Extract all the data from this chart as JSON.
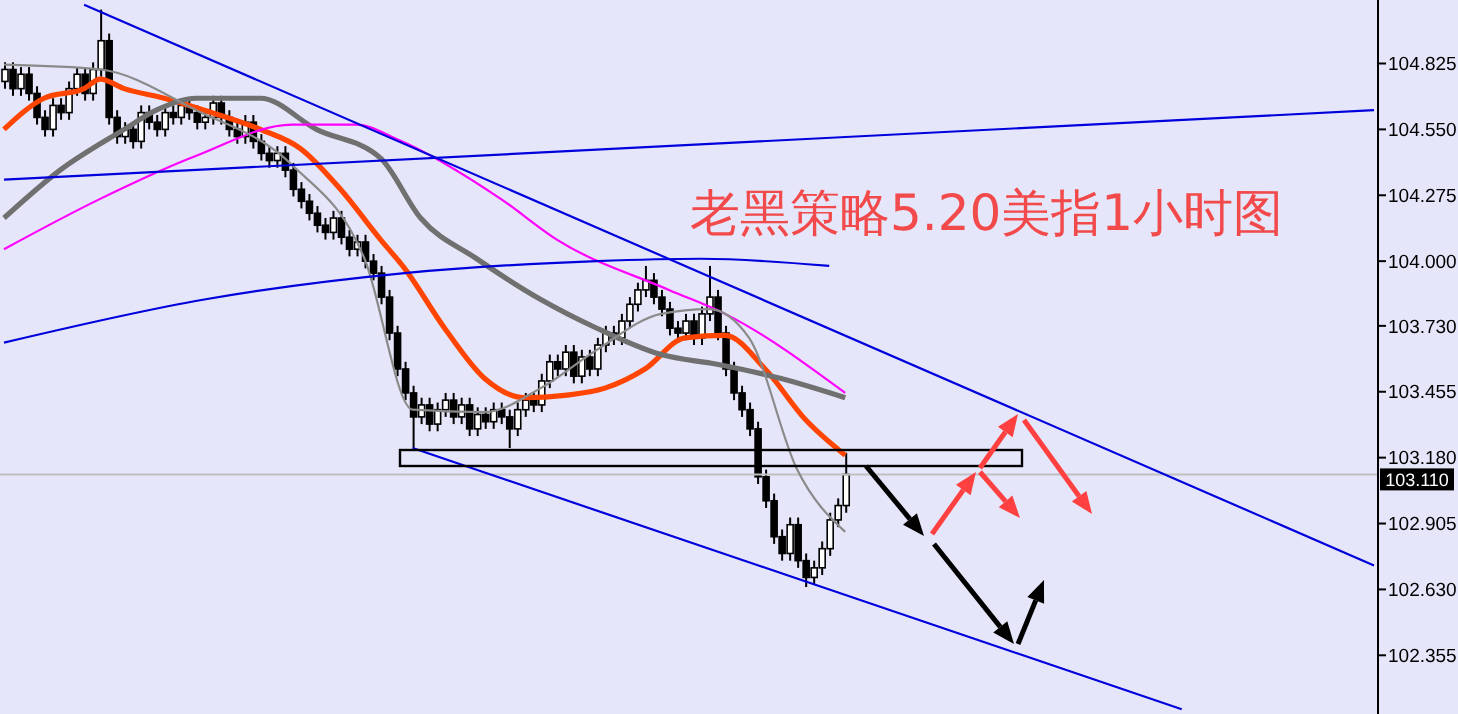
{
  "chart_data": {
    "type": "candlestick",
    "title": "老黑策略5.20美指1小时图",
    "categories": [
      null,
      null,
      null,
      null,
      null,
      null,
      null,
      null,
      null,
      null,
      null,
      null,
      null,
      null,
      null,
      null,
      null,
      null,
      null,
      null,
      null,
      null,
      null,
      null,
      null,
      null,
      null,
      null,
      null,
      null,
      null,
      null,
      null,
      null,
      null,
      null,
      null,
      null,
      null,
      null,
      null,
      null,
      null,
      null,
      null,
      null,
      null,
      null,
      null,
      null,
      null,
      null,
      null,
      null,
      null,
      null,
      null,
      null,
      null,
      null,
      null,
      null,
      null,
      null,
      null,
      null,
      null,
      null,
      null,
      null,
      null,
      null,
      null,
      null,
      null,
      null,
      null,
      null,
      null,
      null,
      null,
      null,
      null,
      null,
      null,
      null,
      null,
      null,
      null,
      null,
      null,
      null,
      null,
      null,
      null,
      null,
      null,
      null,
      null,
      null,
      null,
      null,
      null,
      null,
      null,
      null,
      null,
      null,
      null,
      null,
      null,
      null,
      null,
      null,
      null,
      null,
      null,
      null,
      null,
      null,
      null,
      null,
      null,
      null,
      null,
      null,
      null,
      null,
      null,
      null,
      null,
      null,
      null,
      null,
      null,
      null,
      null,
      null,
      null,
      null,
      null,
      null,
      null,
      null,
      null,
      null,
      null,
      null,
      null,
      null,
      null,
      null,
      null,
      null,
      null,
      null,
      null,
      null,
      null,
      null,
      null,
      null,
      null,
      null,
      null,
      null,
      null,
      null,
      null,
      null,
      null,
      null
    ],
    "ohlc": [
      [
        104.75,
        104.83,
        104.72,
        104.8
      ],
      [
        104.8,
        104.83,
        104.69,
        104.72
      ],
      [
        104.72,
        104.81,
        104.69,
        104.78
      ],
      [
        104.78,
        104.81,
        104.67,
        104.7
      ],
      [
        104.7,
        104.73,
        104.57,
        104.6
      ],
      [
        104.6,
        104.63,
        104.52,
        104.55
      ],
      [
        104.55,
        104.68,
        104.52,
        104.65
      ],
      [
        104.65,
        104.68,
        104.59,
        104.62
      ],
      [
        104.62,
        104.75,
        104.59,
        104.72
      ],
      [
        104.72,
        104.81,
        104.69,
        104.78
      ],
      [
        104.78,
        104.81,
        104.67,
        104.7
      ],
      [
        104.7,
        104.83,
        104.67,
        104.8
      ],
      [
        104.8,
        105.05,
        104.77,
        104.92
      ],
      [
        104.92,
        104.95,
        104.57,
        104.6
      ],
      [
        104.6,
        104.63,
        104.49,
        104.52
      ],
      [
        104.52,
        104.58,
        104.49,
        104.55
      ],
      [
        104.55,
        104.58,
        104.47,
        104.5
      ],
      [
        104.5,
        104.65,
        104.47,
        104.62
      ],
      [
        104.62,
        104.65,
        104.55,
        104.58
      ],
      [
        104.58,
        104.61,
        104.52,
        104.55
      ],
      [
        104.55,
        104.65,
        104.52,
        104.62
      ],
      [
        104.62,
        104.65,
        104.57,
        104.6
      ],
      [
        104.6,
        104.68,
        104.57,
        104.65
      ],
      [
        104.65,
        104.68,
        104.59,
        104.62
      ],
      [
        104.62,
        104.65,
        104.55,
        104.58
      ],
      [
        104.58,
        104.63,
        104.55,
        104.6
      ],
      [
        104.6,
        104.69,
        104.57,
        104.66
      ],
      [
        104.66,
        104.69,
        104.57,
        104.6
      ],
      [
        104.6,
        104.63,
        104.52,
        104.55
      ],
      [
        104.55,
        104.58,
        104.49,
        104.52
      ],
      [
        104.52,
        104.61,
        104.49,
        104.58
      ],
      [
        104.58,
        104.61,
        104.47,
        104.5
      ],
      [
        104.5,
        104.53,
        104.42,
        104.45
      ],
      [
        104.45,
        104.48,
        104.39,
        104.42
      ],
      [
        104.42,
        104.48,
        104.39,
        104.45
      ],
      [
        104.45,
        104.48,
        104.35,
        104.38
      ],
      [
        104.38,
        104.41,
        104.27,
        104.3
      ],
      [
        104.3,
        104.33,
        104.22,
        104.25
      ],
      [
        104.25,
        104.28,
        104.17,
        104.2
      ],
      [
        104.2,
        104.23,
        104.12,
        104.15
      ],
      [
        104.15,
        104.18,
        104.09,
        104.12
      ],
      [
        104.12,
        104.21,
        104.09,
        104.18
      ],
      [
        104.18,
        104.21,
        104.07,
        104.1
      ],
      [
        104.1,
        104.13,
        104.02,
        104.05
      ],
      [
        104.05,
        104.11,
        104.02,
        104.08
      ],
      [
        104.08,
        104.11,
        103.97,
        104.0
      ],
      [
        104.0,
        104.03,
        103.92,
        103.95
      ],
      [
        103.95,
        103.98,
        103.82,
        103.85
      ],
      [
        103.85,
        103.88,
        103.67,
        103.7
      ],
      [
        103.7,
        103.73,
        103.52,
        103.55
      ],
      [
        103.55,
        103.58,
        103.42,
        103.45
      ],
      [
        103.45,
        103.48,
        103.22,
        103.35
      ],
      [
        103.35,
        103.43,
        103.32,
        103.4
      ],
      [
        103.4,
        103.43,
        103.29,
        103.32
      ],
      [
        103.32,
        103.41,
        103.29,
        103.38
      ],
      [
        103.38,
        103.45,
        103.35,
        103.42
      ],
      [
        103.42,
        103.45,
        103.32,
        103.35
      ],
      [
        103.35,
        103.43,
        103.32,
        103.4
      ],
      [
        103.4,
        103.43,
        103.27,
        103.3
      ],
      [
        103.3,
        103.39,
        103.27,
        103.36
      ],
      [
        103.36,
        103.39,
        103.3,
        103.33
      ],
      [
        103.33,
        103.41,
        103.3,
        103.38
      ],
      [
        103.38,
        103.41,
        103.32,
        103.35
      ],
      [
        103.35,
        103.38,
        103.22,
        103.3
      ],
      [
        103.3,
        103.41,
        103.27,
        103.38
      ],
      [
        103.38,
        103.45,
        103.35,
        103.42
      ],
      [
        103.42,
        103.45,
        103.37,
        103.4
      ],
      [
        103.4,
        103.53,
        103.37,
        103.5
      ],
      [
        103.5,
        103.61,
        103.47,
        103.58
      ],
      [
        103.58,
        103.61,
        103.52,
        103.55
      ],
      [
        103.55,
        103.65,
        103.52,
        103.62
      ],
      [
        103.62,
        103.65,
        103.49,
        103.52
      ],
      [
        103.52,
        103.63,
        103.49,
        103.6
      ],
      [
        103.6,
        103.63,
        103.52,
        103.55
      ],
      [
        103.55,
        103.68,
        103.52,
        103.65
      ],
      [
        103.65,
        103.73,
        103.62,
        103.7
      ],
      [
        103.7,
        103.73,
        103.65,
        103.68
      ],
      [
        103.68,
        103.78,
        103.65,
        103.75
      ],
      [
        103.75,
        103.85,
        103.72,
        103.82
      ],
      [
        103.82,
        103.91,
        103.79,
        103.88
      ],
      [
        103.88,
        103.98,
        103.85,
        103.92
      ],
      [
        103.92,
        103.95,
        103.82,
        103.85
      ],
      [
        103.85,
        103.88,
        103.77,
        103.8
      ],
      [
        103.8,
        103.83,
        103.69,
        103.72
      ],
      [
        103.72,
        103.75,
        103.67,
        103.7
      ],
      [
        103.7,
        103.78,
        103.67,
        103.75
      ],
      [
        103.75,
        103.78,
        103.65,
        103.68
      ],
      [
        103.68,
        103.81,
        103.65,
        103.78
      ],
      [
        103.78,
        103.98,
        103.75,
        103.85
      ],
      [
        103.85,
        103.88,
        103.67,
        103.7
      ],
      [
        103.7,
        103.73,
        103.52,
        103.55
      ],
      [
        103.55,
        103.58,
        103.42,
        103.45
      ],
      [
        103.45,
        103.48,
        103.35,
        103.38
      ],
      [
        103.38,
        103.41,
        103.27,
        103.3
      ],
      [
        103.3,
        103.33,
        103.07,
        103.1
      ],
      [
        103.1,
        103.13,
        102.97,
        103.0
      ],
      [
        103.0,
        103.03,
        102.82,
        102.85
      ],
      [
        102.85,
        102.88,
        102.75,
        102.78
      ],
      [
        102.78,
        102.93,
        102.75,
        102.9
      ],
      [
        102.9,
        102.93,
        102.72,
        102.75
      ],
      [
        102.75,
        102.78,
        102.64,
        102.68
      ],
      [
        102.68,
        102.75,
        102.65,
        102.72
      ],
      [
        102.72,
        102.83,
        102.69,
        102.8
      ],
      [
        102.8,
        102.95,
        102.77,
        102.92
      ],
      [
        102.92,
        103.01,
        102.89,
        102.98
      ],
      [
        102.98,
        103.2,
        102.95,
        103.11
      ],
      null,
      null,
      null,
      null,
      null,
      null,
      null,
      null,
      null,
      null,
      null,
      null,
      null,
      null,
      null,
      null,
      null,
      null,
      null,
      null,
      null,
      null,
      null,
      null,
      null,
      null,
      null,
      null,
      null,
      null,
      null,
      null,
      null,
      null,
      null,
      null,
      null,
      null,
      null,
      null,
      null,
      null,
      null,
      null,
      null,
      null,
      null,
      null,
      null,
      null,
      null,
      null,
      null,
      null,
      null,
      null,
      null,
      null,
      null,
      null,
      null,
      null,
      null,
      null,
      null,
      null
    ],
    "series": [
      {
        "type": "line",
        "color": "#ff4500",
        "values": [
          104.55,
          null,
          null,
          null,
          null,
          104.68,
          null,
          null,
          null,
          null,
          104.72,
          null,
          104.76,
          null,
          null,
          104.72,
          null,
          null,
          null,
          null,
          104.68,
          null,
          null,
          null,
          null,
          104.63,
          null,
          null,
          null,
          null,
          null,
          null,
          104.55,
          null,
          null,
          null,
          null,
          104.47,
          null,
          null,
          null,
          null,
          104.3,
          null,
          null,
          null,
          null,
          104.09,
          null,
          null,
          103.97,
          null,
          null,
          null,
          null,
          103.72,
          null,
          null,
          null,
          null,
          103.51,
          null,
          null,
          null,
          null,
          103.43,
          null,
          null,
          null,
          null,
          103.44,
          null,
          null,
          null,
          null,
          103.47,
          null,
          null,
          null,
          null,
          103.55,
          null,
          null,
          null,
          null,
          103.68,
          null,
          null,
          null,
          null,
          103.69,
          null,
          null,
          null,
          null,
          103.55,
          null,
          null,
          null,
          null,
          103.34,
          null,
          null,
          null,
          null,
          103.19,
          null,
          null,
          null,
          null,
          null,
          null,
          null,
          null,
          null,
          null,
          null,
          null,
          null,
          null,
          null,
          null,
          null,
          null,
          null,
          null,
          null,
          null,
          null,
          null,
          null,
          null,
          null,
          null,
          null,
          null,
          null,
          null,
          null,
          null,
          null,
          null,
          null,
          null,
          null,
          null,
          null,
          null,
          null,
          null,
          null,
          null,
          null,
          null,
          null,
          null,
          null,
          null,
          null,
          null,
          null,
          null,
          null,
          null,
          null,
          null,
          null,
          null,
          null,
          null,
          null,
          null
        ]
      },
      {
        "type": "line",
        "color": "#707070",
        "values": [
          104.18,
          null,
          null,
          null,
          null,
          null,
          null,
          104.38,
          null,
          null,
          null,
          null,
          null,
          null,
          null,
          104.55,
          null,
          null,
          null,
          104.63,
          null,
          null,
          null,
          null,
          104.68,
          null,
          null,
          null,
          null,
          null,
          null,
          null,
          104.68,
          null,
          null,
          null,
          null,
          null,
          null,
          104.55,
          null,
          null,
          null,
          null,
          null,
          null,
          null,
          104.43,
          null,
          null,
          null,
          null,
          104.18,
          null,
          null,
          null,
          null,
          null,
          null,
          104.01,
          null,
          null,
          null,
          null,
          null,
          null,
          null,
          103.84,
          null,
          null,
          null,
          null,
          null,
          null,
          103.72,
          null,
          null,
          null,
          null,
          null,
          null,
          null,
          103.61,
          null,
          null,
          null,
          null,
          null,
          null,
          103.57,
          null,
          null,
          null,
          null,
          null,
          null,
          null,
          103.51,
          null,
          null,
          null,
          null,
          null,
          null,
          null,
          103.43,
          null,
          null,
          null,
          null,
          null,
          null,
          null,
          null,
          null,
          null,
          null,
          null,
          null,
          null,
          null,
          null,
          null,
          null,
          null,
          null,
          null,
          null,
          null,
          null,
          null,
          null,
          null,
          null,
          null,
          null,
          null,
          null,
          null,
          null,
          null,
          null,
          null,
          null,
          null,
          null,
          null,
          null,
          null,
          null,
          null,
          null,
          null,
          null,
          null,
          null,
          null,
          null,
          null,
          null,
          null,
          null,
          null,
          null,
          null,
          null,
          null,
          null,
          null,
          null,
          null,
          null
        ]
      },
      {
        "type": "line",
        "color": "#ff00ff",
        "values": [
          104.05,
          null,
          null,
          null,
          null,
          null,
          null,
          null,
          null,
          null,
          null,
          null,
          104.26,
          null,
          null,
          null,
          null,
          null,
          null,
          null,
          null,
          null,
          null,
          null,
          104.44,
          null,
          null,
          null,
          null,
          null,
          null,
          null,
          null,
          null,
          null,
          null,
          104.57,
          null,
          null,
          null,
          null,
          null,
          null,
          null,
          104.57,
          null,
          null,
          null,
          null,
          104.51,
          null,
          null,
          null,
          null,
          null,
          null,
          null,
          null,
          null,
          null,
          null,
          null,
          104.26,
          null,
          null,
          null,
          null,
          null,
          null,
          104.09,
          null,
          null,
          null,
          null,
          null,
          null,
          null,
          null,
          null,
          null,
          null,
          null,
          null,
          103.88,
          null,
          null,
          null,
          null,
          null,
          null,
          103.78,
          null,
          null,
          null,
          null,
          null,
          null,
          null,
          null,
          null,
          null,
          null,
          null,
          null,
          null,
          103.45,
          null,
          null,
          null,
          null,
          null,
          null,
          null,
          null,
          null,
          null,
          null,
          null,
          null,
          null,
          null,
          null,
          null,
          null,
          null,
          null,
          null,
          null,
          null,
          null,
          null,
          null,
          null,
          null,
          null,
          null,
          null,
          null,
          null,
          null,
          null,
          null,
          null,
          null,
          null,
          null,
          null,
          null,
          null,
          null,
          null,
          null,
          null,
          null,
          null,
          null,
          null,
          null,
          null,
          null,
          null,
          null,
          null,
          null,
          null,
          null,
          null,
          null,
          null,
          null,
          null,
          null
        ]
      },
      {
        "type": "line",
        "color": "#8a8a8a",
        "values": [
          104.82,
          null,
          null,
          null,
          null,
          null,
          null,
          null,
          null,
          null,
          null,
          null,
          104.8,
          null,
          null,
          null,
          null,
          null,
          null,
          null,
          null,
          null,
          null,
          null,
          104.63,
          null,
          null,
          null,
          null,
          null,
          null,
          null,
          null,
          null,
          null,
          null,
          104.4,
          null,
          null,
          null,
          null,
          null,
          null,
          null,
          null,
          104.01,
          null,
          null,
          null,
          null,
          null,
          103.38,
          null,
          null,
          null,
          null,
          null,
          null,
          null,
          null,
          103.37,
          null,
          null,
          null,
          null,
          null,
          null,
          103.47,
          null,
          null,
          null,
          null,
          null,
          null,
          103.63,
          null,
          null,
          null,
          null,
          null,
          null,
          null,
          103.78,
          null,
          null,
          null,
          null,
          null,
          103.8,
          null,
          null,
          null,
          null,
          103.68,
          null,
          null,
          null,
          null,
          null,
          103.13,
          null,
          null,
          null,
          null,
          null,
          102.87,
          null,
          null,
          null,
          null,
          null,
          null,
          null,
          null,
          null,
          null,
          null,
          null,
          null,
          null,
          null,
          null,
          null,
          null,
          null,
          null,
          null,
          null,
          null,
          null,
          null,
          null,
          null,
          null,
          null,
          null,
          null,
          null,
          null,
          null,
          null,
          null,
          null,
          null,
          null,
          null,
          null,
          null,
          null,
          null,
          null,
          null,
          null,
          null,
          null,
          null,
          null,
          null,
          null,
          null,
          null,
          null,
          null,
          null,
          null,
          null,
          null,
          null,
          null,
          null,
          null,
          null
        ]
      },
      {
        "type": "line",
        "color": "#0000dd",
        "values": [
          null,
          null,
          null,
          null,
          null,
          null,
          null,
          null,
          null,
          null,
          105.07,
          null,
          null,
          null,
          null,
          null,
          null,
          null,
          null,
          null,
          null,
          null,
          null,
          null,
          null,
          null,
          null,
          null,
          null,
          null,
          null,
          null,
          null,
          null,
          null,
          null,
          null,
          null,
          null,
          null,
          null,
          null,
          null,
          null,
          null,
          null,
          null,
          null,
          null,
          null,
          null,
          null,
          null,
          null,
          null,
          null,
          null,
          null,
          null,
          null,
          null,
          null,
          null,
          null,
          null,
          null,
          null,
          null,
          null,
          null,
          null,
          null,
          null,
          null,
          null,
          null,
          null,
          null,
          null,
          null,
          null,
          null,
          null,
          null,
          null,
          null,
          null,
          null,
          null,
          null,
          null,
          null,
          null,
          null,
          null,
          null,
          null,
          null,
          null,
          null,
          null,
          null,
          null,
          null,
          null,
          null,
          null,
          null,
          null,
          null,
          null,
          null,
          null,
          null,
          null,
          null,
          null,
          null,
          null,
          null,
          null,
          null,
          null,
          null,
          null,
          null,
          null,
          null,
          null,
          null,
          null,
          null,
          null,
          null,
          null,
          null,
          null,
          null,
          null,
          null,
          null,
          null,
          null,
          null,
          null,
          null,
          null,
          null,
          null,
          null,
          null,
          null,
          null,
          null,
          null,
          null,
          null,
          null,
          null,
          null,
          null,
          null,
          null,
          null,
          null,
          null,
          null,
          null,
          null,
          null,
          null,
          102.73
        ]
      },
      {
        "type": "line",
        "color": "#0000dd",
        "values": [
          104.34,
          null,
          null,
          null,
          null,
          null,
          null,
          null,
          null,
          null,
          null,
          null,
          null,
          null,
          null,
          null,
          null,
          null,
          null,
          null,
          null,
          null,
          null,
          null,
          null,
          null,
          null,
          null,
          null,
          null,
          null,
          null,
          null,
          null,
          null,
          null,
          null,
          null,
          null,
          null,
          null,
          null,
          null,
          null,
          null,
          null,
          null,
          null,
          null,
          null,
          null,
          null,
          null,
          null,
          null,
          null,
          null,
          null,
          null,
          null,
          null,
          null,
          null,
          null,
          null,
          null,
          null,
          null,
          null,
          null,
          null,
          null,
          null,
          null,
          null,
          null,
          null,
          null,
          null,
          null,
          null,
          null,
          null,
          null,
          null,
          null,
          null,
          null,
          null,
          null,
          null,
          null,
          null,
          null,
          null,
          null,
          null,
          null,
          null,
          null,
          null,
          null,
          null,
          null,
          null,
          null,
          null,
          null,
          null,
          null,
          null,
          null,
          null,
          null,
          null,
          null,
          null,
          null,
          null,
          null,
          null,
          null,
          null,
          null,
          null,
          null,
          null,
          null,
          null,
          null,
          null,
          null,
          null,
          null,
          null,
          null,
          null,
          null,
          null,
          null,
          null,
          null,
          null,
          null,
          null,
          null,
          null,
          null,
          null,
          null,
          null,
          null,
          null,
          null,
          null,
          null,
          null,
          null,
          null,
          null,
          null,
          null,
          null,
          null,
          null,
          null,
          null,
          null,
          null,
          null,
          null,
          104.63
        ]
      },
      {
        "type": "line",
        "color": "#0000dd",
        "values": [
          null,
          null,
          null,
          null,
          null,
          null,
          null,
          null,
          null,
          null,
          null,
          null,
          null,
          null,
          null,
          null,
          null,
          null,
          null,
          null,
          null,
          null,
          null,
          null,
          null,
          null,
          null,
          null,
          null,
          null,
          null,
          null,
          null,
          null,
          null,
          null,
          null,
          null,
          null,
          null,
          null,
          null,
          null,
          null,
          null,
          null,
          null,
          null,
          null,
          null,
          null,
          103.22,
          null,
          null,
          null,
          null,
          null,
          null,
          null,
          null,
          null,
          null,
          null,
          null,
          null,
          null,
          null,
          null,
          null,
          null,
          null,
          null,
          null,
          null,
          null,
          null,
          null,
          null,
          null,
          null,
          null,
          null,
          null,
          null,
          null,
          null,
          null,
          null,
          null,
          null,
          null,
          null,
          null,
          null,
          null,
          null,
          null,
          null,
          null,
          null,
          null,
          null,
          null,
          null,
          null,
          null,
          null,
          null,
          null,
          null,
          null,
          null,
          null,
          null,
          null,
          null,
          null,
          null,
          null,
          null,
          null,
          null,
          null,
          null,
          null,
          null,
          null,
          null,
          null,
          null,
          null,
          null,
          null,
          null,
          null,
          null,
          null,
          null,
          null,
          null,
          null,
          null,
          null,
          null,
          null,
          null,
          null,
          102.13,
          null,
          null,
          null,
          null,
          null,
          null,
          null,
          null,
          null,
          null,
          null,
          null,
          null,
          null,
          null,
          null,
          null,
          null,
          null,
          null,
          null,
          null,
          null,
          null
        ]
      },
      {
        "type": "line",
        "color": "#0000dd",
        "values": [
          103.66,
          null,
          null,
          null,
          null,
          null,
          null,
          null,
          null,
          null,
          null,
          null,
          null,
          null,
          null,
          null,
          null,
          null,
          null,
          null,
          null,
          null,
          null,
          null,
          null,
          103.84,
          null,
          null,
          null,
          null,
          null,
          null,
          null,
          null,
          null,
          null,
          null,
          null,
          null,
          null,
          null,
          null,
          null,
          null,
          null,
          null,
          null,
          null,
          null,
          null,
          103.95,
          null,
          null,
          null,
          null,
          null,
          null,
          null,
          null,
          null,
          null,
          null,
          null,
          null,
          null,
          null,
          null,
          null,
          null,
          null,
          null,
          null,
          null,
          null,
          104.0,
          null,
          null,
          null,
          null,
          null,
          null,
          null,
          null,
          null,
          null,
          null,
          null,
          104.01,
          null,
          null,
          null,
          null,
          null,
          null,
          null,
          null,
          null,
          null,
          null,
          null,
          null,
          null,
          null,
          103.98,
          null,
          null,
          null,
          null,
          null,
          null,
          null,
          null,
          null,
          null,
          null,
          null,
          null,
          null,
          null,
          null,
          null,
          null,
          null,
          null,
          null,
          null,
          null,
          null,
          null,
          null,
          null,
          null,
          null,
          null,
          null,
          null,
          null,
          null,
          null,
          null,
          null,
          null,
          null,
          null,
          null,
          null,
          null,
          null,
          null,
          null,
          null,
          null,
          null,
          null,
          null,
          null,
          null,
          null,
          null,
          null,
          null,
          null,
          null,
          null,
          null,
          null,
          null,
          null,
          null,
          null,
          null,
          null
        ]
      }
    ],
    "ylim": [
      102.11,
      105.09
    ],
    "yticks": [
      102.355,
      {
        "value": 102.63,
        "label": "102.630"
      },
      102.905,
      {
        "value": 103.18,
        "label": "103.180"
      },
      103.455,
      {
        "value": 103.73,
        "label": "103.730"
      },
      {
        "value": 104,
        "label": "104.000"
      },
      104.275,
      {
        "value": 104.55,
        "label": "104.550"
      },
      104.825
    ],
    "ref_lines": [
      {
        "axis": "y",
        "value": 103.11,
        "label": "103.110",
        "color": "#c0c0c0"
      }
    ],
    "tick_labels": "y"
  }
}
